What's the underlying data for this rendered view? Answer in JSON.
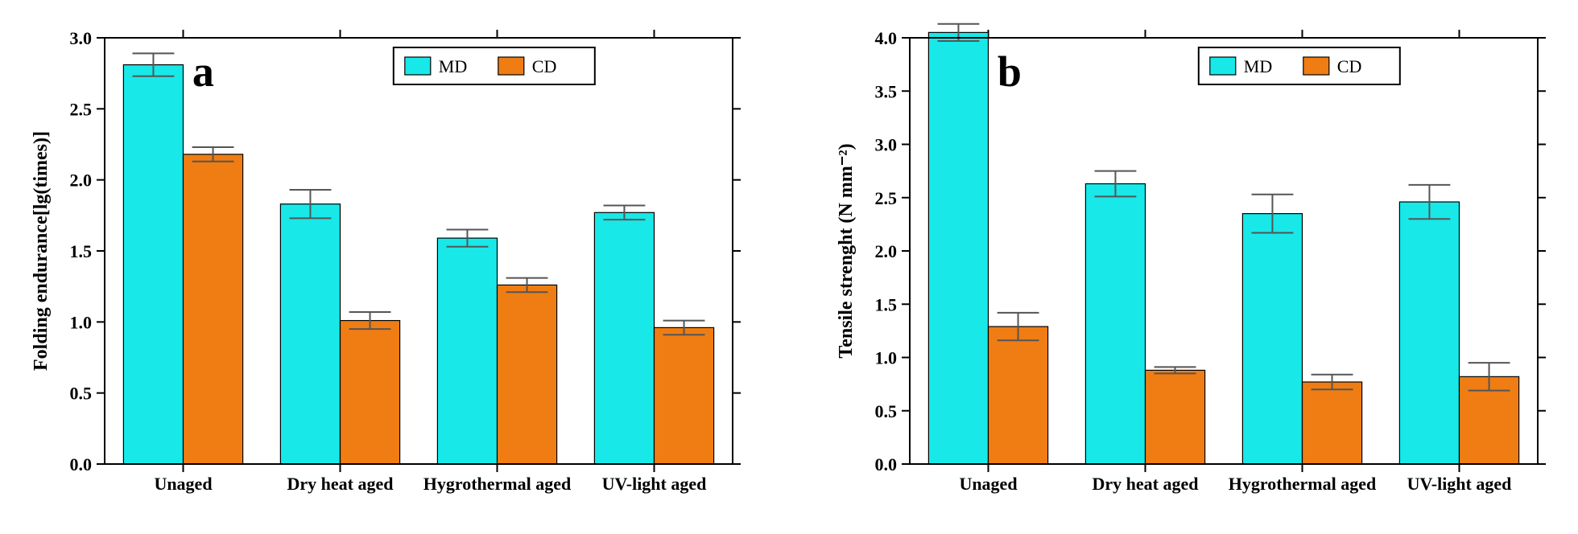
{
  "colors": {
    "md": "#18e8e8",
    "cd": "#ef7d14",
    "axis": "#000000",
    "error": "#555555",
    "background": "#ffffff"
  },
  "legend": {
    "md_label": "MD",
    "cd_label": "CD"
  },
  "categories": [
    "Unaged",
    "Dry heat aged",
    "Hygrothermal aged",
    "UV-light aged"
  ],
  "panel_a": {
    "letter": "a",
    "type": "bar",
    "ylabel": "Folding endurance[lg(times)]",
    "ylim": [
      0.0,
      3.0
    ],
    "ytick_step": 0.5,
    "bar_width": 0.38,
    "tick_fontsize": 22,
    "label_fontsize": 24,
    "letter_fontsize": 54,
    "legend_fontsize": 22,
    "series": {
      "md": {
        "values": [
          2.81,
          1.83,
          1.59,
          1.77
        ],
        "errors": [
          0.08,
          0.1,
          0.06,
          0.05
        ]
      },
      "cd": {
        "values": [
          2.18,
          1.01,
          1.26,
          0.96
        ],
        "errors": [
          0.05,
          0.06,
          0.05,
          0.05
        ]
      }
    }
  },
  "panel_b": {
    "letter": "b",
    "type": "bar",
    "ylabel": "Tensile strenght (N mm⁻²)",
    "ylim": [
      0.0,
      4.0
    ],
    "ytick_step": 0.5,
    "bar_width": 0.38,
    "tick_fontsize": 22,
    "label_fontsize": 24,
    "letter_fontsize": 54,
    "legend_fontsize": 22,
    "series": {
      "md": {
        "values": [
          4.05,
          2.63,
          2.35,
          2.46
        ],
        "errors": [
          0.08,
          0.12,
          0.18,
          0.16
        ]
      },
      "cd": {
        "values": [
          1.29,
          0.88,
          0.77,
          0.82
        ],
        "errors": [
          0.13,
          0.03,
          0.07,
          0.13
        ]
      }
    }
  }
}
